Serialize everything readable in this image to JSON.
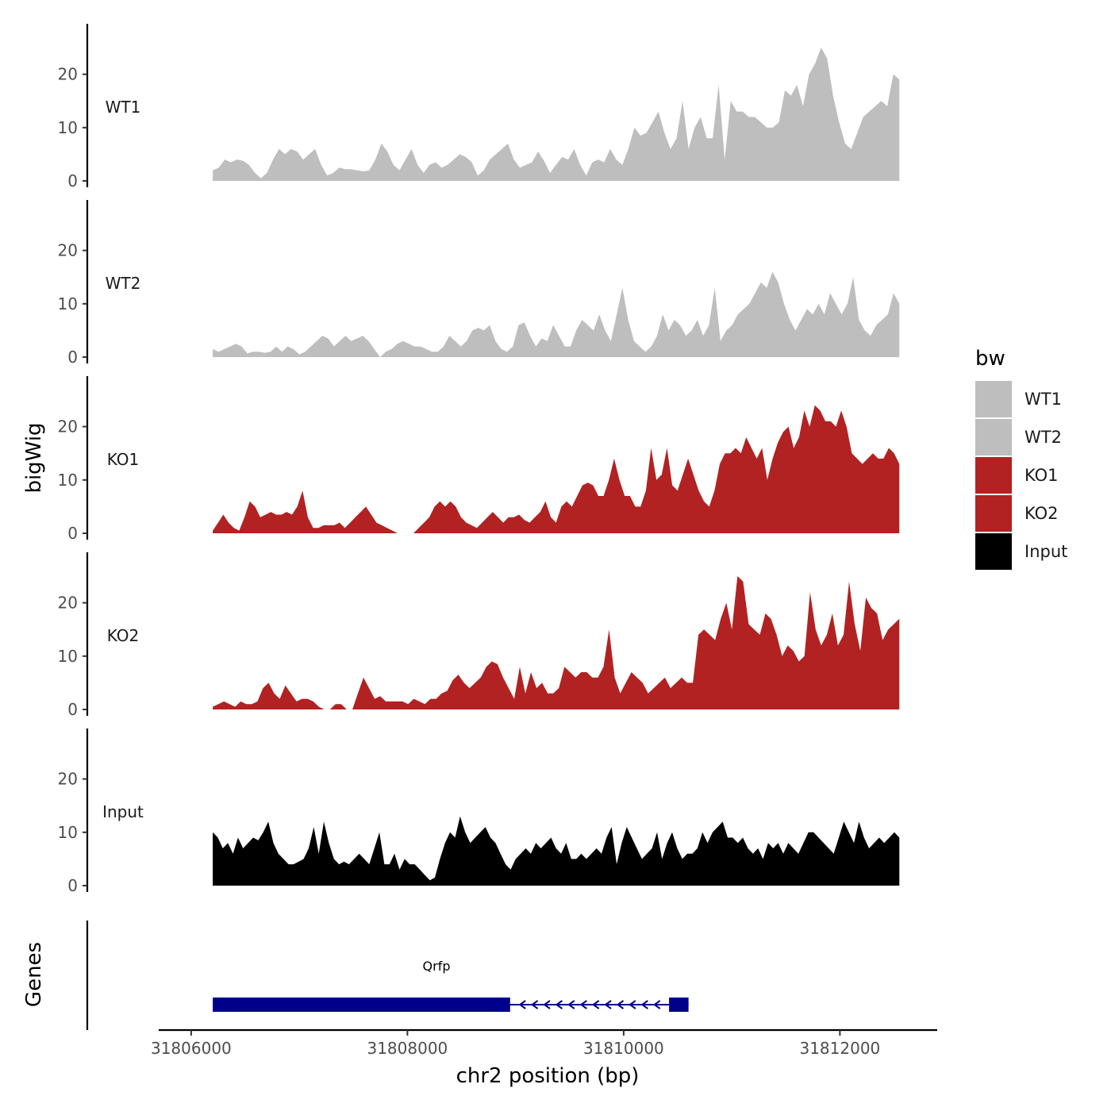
{
  "chart_data": {
    "type": "area",
    "ylabel": "bigWig",
    "xlabel": "chr2 position (bp)",
    "genes_label": "Genes",
    "x_range": [
      31805700,
      31812900
    ],
    "data_x_range": [
      31806200,
      31812550
    ],
    "x_ticks": [
      31806000,
      31808000,
      31810000,
      31812000
    ],
    "x_tick_labels": [
      "31806000",
      "31808000",
      "31810000",
      "31812000"
    ],
    "ylim": [
      0,
      29
    ],
    "y_ticks": [
      0,
      10,
      20
    ],
    "y_tick_labels": [
      "0",
      "10",
      "20"
    ],
    "legend": {
      "title": "bw",
      "entries": [
        {
          "label": "WT1",
          "color": "#bebebe"
        },
        {
          "label": "WT2",
          "color": "#bebebe"
        },
        {
          "label": "KO1",
          "color": "#b22222"
        },
        {
          "label": "KO2",
          "color": "#b22222"
        },
        {
          "label": "Input",
          "color": "#000000"
        }
      ]
    },
    "series": [
      {
        "name": "WT1",
        "color": "#bebebe",
        "values": [
          2,
          2.5,
          4,
          3.5,
          4,
          3.8,
          3,
          1.5,
          0.5,
          1.5,
          4,
          6,
          5,
          6,
          5.5,
          4,
          5,
          6,
          3,
          1,
          1.5,
          2.5,
          2.2,
          2.2,
          2,
          1.8,
          2,
          4,
          7,
          5.5,
          3,
          2,
          4,
          6,
          3,
          1.5,
          3,
          3.5,
          2.5,
          3,
          4,
          5,
          4.5,
          3.5,
          1,
          2,
          4,
          5,
          6,
          7,
          4,
          2.5,
          3,
          3.5,
          5.5,
          3.8,
          1.5,
          3,
          4.5,
          4,
          6,
          3,
          1,
          3.5,
          4,
          3.5,
          6,
          4,
          3,
          6,
          10,
          8.5,
          9,
          11,
          13,
          9,
          6,
          8,
          15,
          6,
          10,
          12,
          8,
          8,
          18,
          4,
          15,
          13,
          13,
          12,
          12,
          11,
          10,
          10,
          11,
          17,
          16,
          18,
          14,
          20,
          22,
          25,
          23,
          16,
          11,
          7,
          6,
          9,
          12,
          13,
          14,
          15,
          14,
          20,
          19
        ]
      },
      {
        "name": "WT2",
        "color": "#bebebe",
        "values": [
          1.5,
          1,
          1.5,
          2,
          2.5,
          2,
          0.7,
          1,
          1,
          0.8,
          1,
          2,
          1,
          2,
          1.5,
          0.5,
          1,
          2,
          3,
          4,
          3.5,
          2,
          3,
          4,
          3,
          3.5,
          4,
          3,
          1.5,
          0,
          1,
          1.5,
          2.5,
          3,
          2.5,
          2,
          2,
          1.5,
          1,
          1,
          2,
          4,
          3,
          2,
          3,
          5,
          5.5,
          5,
          6,
          3,
          1.5,
          1,
          2,
          6,
          6.5,
          4,
          2,
          3.5,
          3,
          6,
          4,
          2,
          2,
          5,
          7,
          6,
          5,
          8,
          5,
          3,
          8,
          13,
          7,
          3,
          2,
          1,
          2,
          4,
          8,
          5,
          7,
          6,
          4,
          5,
          7,
          4,
          6,
          13,
          3,
          5,
          6,
          8,
          9,
          10,
          12,
          14,
          13,
          16,
          14,
          10,
          7,
          5,
          7,
          9,
          8,
          10,
          8,
          12,
          10,
          8,
          10,
          15,
          7,
          5,
          4,
          6,
          7,
          8,
          12,
          10
        ]
      },
      {
        "name": "KO1",
        "color": "#b22222",
        "values": [
          0.5,
          2,
          3.5,
          2,
          1,
          0.5,
          3,
          6,
          5,
          3,
          3.5,
          4,
          3.5,
          3.5,
          4,
          3.5,
          5,
          8,
          3,
          1,
          1,
          1.5,
          1.5,
          1.5,
          2,
          1,
          2,
          3,
          4,
          5,
          3.5,
          2,
          1.5,
          1,
          0.5,
          0,
          0,
          0,
          0,
          1,
          2,
          3,
          5,
          6,
          5,
          6,
          5,
          3,
          2,
          1.5,
          1,
          2,
          3,
          4,
          3,
          2,
          3,
          3,
          3.5,
          2.5,
          2,
          3,
          4,
          6,
          3,
          2,
          5,
          6,
          5,
          7,
          9,
          9.5,
          9,
          7,
          7,
          10,
          14,
          10,
          7,
          7,
          5,
          5,
          8,
          16,
          10,
          11,
          16,
          9,
          8,
          11,
          14,
          11,
          8,
          6,
          5,
          8,
          13,
          15,
          15,
          16,
          15,
          18,
          16,
          14,
          16,
          10,
          14,
          17,
          19,
          20,
          16,
          18,
          23,
          20,
          24,
          23,
          21,
          21,
          20,
          23,
          20,
          15,
          14,
          13,
          14,
          15,
          14,
          14,
          16,
          15,
          13
        ]
      },
      {
        "name": "KO2",
        "color": "#b22222",
        "values": [
          0.5,
          1,
          1.5,
          1,
          0.5,
          1.5,
          1,
          1,
          1.5,
          4,
          5,
          3,
          2,
          4.5,
          3,
          1.5,
          2,
          2,
          1.5,
          0.5,
          0,
          0,
          1,
          1,
          0,
          0,
          3,
          6,
          4,
          2,
          2.5,
          1.5,
          1.5,
          1.5,
          1.5,
          1,
          2,
          1.5,
          1,
          2,
          2,
          3,
          3.5,
          5.5,
          6.5,
          5,
          4,
          5,
          6,
          8,
          9,
          8.5,
          6,
          4,
          2,
          8,
          3,
          7,
          4,
          5,
          3,
          3,
          4,
          8,
          7,
          6,
          7,
          7,
          6,
          6,
          8,
          15,
          6,
          3,
          5,
          7,
          6,
          5,
          3,
          4,
          5,
          6,
          4,
          5,
          6,
          5,
          5,
          14,
          15,
          14,
          13,
          17,
          20,
          15,
          25,
          24,
          16,
          15,
          14,
          18,
          17,
          14,
          10,
          12,
          11,
          9,
          10,
          22,
          15,
          12,
          14,
          18,
          12,
          14,
          24,
          16,
          11,
          21,
          19,
          18,
          13,
          15,
          16,
          17
        ]
      },
      {
        "name": "Input",
        "color": "#000000",
        "values": [
          10,
          9,
          7,
          8,
          6,
          9,
          7,
          8,
          9,
          8.5,
          10,
          12,
          8,
          6,
          5,
          4,
          4,
          4.5,
          5,
          7,
          11,
          6,
          12,
          8,
          5,
          4,
          4.5,
          4,
          5,
          6,
          5,
          4,
          7,
          10,
          4,
          4,
          6,
          3,
          5,
          4,
          4,
          3,
          2,
          1,
          1.5,
          5,
          8,
          10,
          9,
          13,
          10,
          8,
          9,
          10,
          11,
          9,
          8,
          6,
          4,
          3,
          5,
          6,
          7,
          6,
          8,
          7,
          8,
          9,
          7,
          6,
          8,
          5,
          5,
          6,
          5,
          6,
          7,
          6,
          9,
          11,
          4,
          8,
          11,
          9,
          7,
          5,
          6,
          7,
          10,
          5,
          8,
          10,
          7,
          5,
          6,
          6,
          7,
          10,
          8,
          10,
          11,
          12,
          9,
          9,
          8,
          9,
          7,
          6,
          7,
          5,
          8,
          7,
          8,
          6,
          8,
          7,
          6,
          8,
          10,
          10,
          9,
          8,
          7,
          6,
          9,
          12,
          10,
          8,
          12,
          9,
          7,
          8,
          9,
          8,
          9,
          10,
          9
        ]
      }
    ],
    "gene": {
      "name": "Qrfp",
      "strand": "-",
      "start": 31806200,
      "end": 31810600,
      "exons": [
        [
          31806200,
          31808950
        ],
        [
          31810420,
          31810600
        ]
      ],
      "color": "#00008b"
    }
  }
}
